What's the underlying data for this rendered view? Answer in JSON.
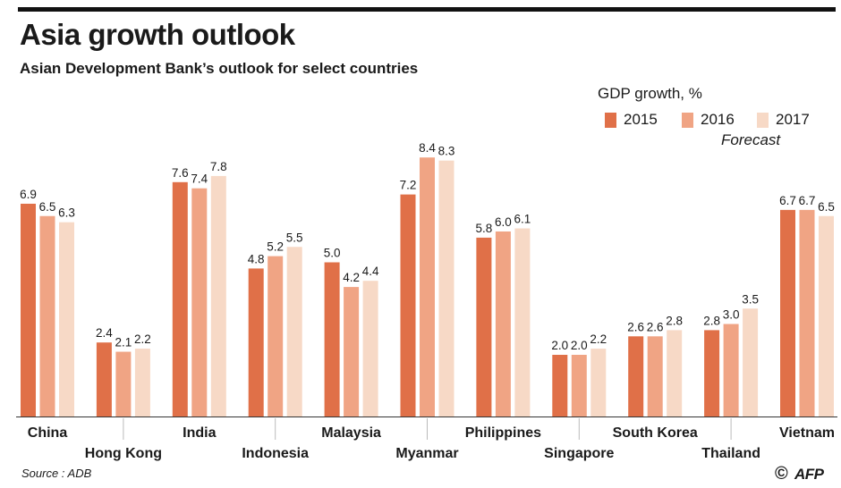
{
  "title": "Asia growth outlook",
  "subtitle": "Asian Development Bank’s outlook for select countries",
  "legend": {
    "title": "GDP growth, %",
    "forecast_label": "Forecast",
    "items": [
      {
        "label": "2015",
        "color": "#e07048"
      },
      {
        "label": "2016",
        "color": "#f0a484"
      },
      {
        "label": "2017",
        "color": "#f7d9c6"
      }
    ]
  },
  "source": "Source : ADB",
  "copyright_symbol": "©",
  "logo_text": "AFP",
  "chart_data": {
    "type": "bar",
    "categories": [
      "China",
      "Hong Kong",
      "India",
      "Indonesia",
      "Malaysia",
      "Myanmar",
      "Philippines",
      "Singapore",
      "South Korea",
      "Thailand",
      "Vietnam"
    ],
    "label_row": [
      "upper",
      "lower",
      "upper",
      "lower",
      "upper",
      "lower",
      "upper",
      "lower",
      "upper",
      "lower",
      "upper"
    ],
    "series": [
      {
        "name": "2015",
        "color": "#e07048",
        "values": [
          6.9,
          2.4,
          7.6,
          4.8,
          5.0,
          7.2,
          5.8,
          2.0,
          2.6,
          2.8,
          6.7
        ]
      },
      {
        "name": "2016",
        "color": "#f0a484",
        "values": [
          6.5,
          2.1,
          7.4,
          5.2,
          4.2,
          8.4,
          6.0,
          2.0,
          2.6,
          3.0,
          6.7
        ]
      },
      {
        "name": "2017",
        "color": "#f7d9c6",
        "values": [
          6.3,
          2.2,
          7.8,
          5.5,
          4.4,
          8.3,
          6.1,
          2.2,
          2.8,
          3.5,
          6.5
        ]
      }
    ],
    "ylim": [
      0,
      8.4
    ],
    "grid": false,
    "legend_position": "top-right"
  }
}
